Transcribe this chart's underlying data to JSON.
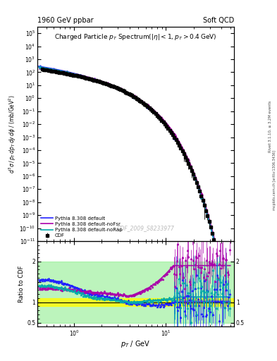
{
  "title_left": "1960 GeV ppbar",
  "title_right": "Soft QCD",
  "plot_title": "Charged Particle $p_T$ Spectrum$(|\\eta| < 1, p_T > 0.4$ GeV$)$",
  "xlabel": "$p_T$ / GeV",
  "ylabel_main": "$d^3\\sigma\\,/\\,p_T\\,dp_T\\,dy\\,d\\phi\\;/\\;(\\mathrm{mb/GeV}^2)$",
  "ylabel_ratio": "Ratio to CDF",
  "right_label1": "Rivet 3.1.10, ≥ 3.2M events",
  "right_label2": "mcplots.cern.ch [arXiv:1306.3436]",
  "watermark": "CDF_2009_S8233977",
  "legend": [
    "CDF",
    "Pythia 8.308 default",
    "Pythia 8.308 default-noFsr",
    "Pythia 8.308 default-noRap"
  ],
  "colors": {
    "CDF": "#000000",
    "default": "#2222ff",
    "noFsr": "#aa00aa",
    "noRap": "#00aaaa"
  },
  "xlim": [
    0.4,
    55
  ],
  "ylim_main": [
    1e-11,
    300000.0
  ],
  "ylim_ratio": [
    0.4,
    2.5
  ],
  "band_yellow": [
    0.9,
    1.1
  ],
  "band_green": [
    0.5,
    2.0
  ],
  "ratio_line": 1.0,
  "fig_width": 3.93,
  "fig_height": 5.12,
  "dpi": 100
}
